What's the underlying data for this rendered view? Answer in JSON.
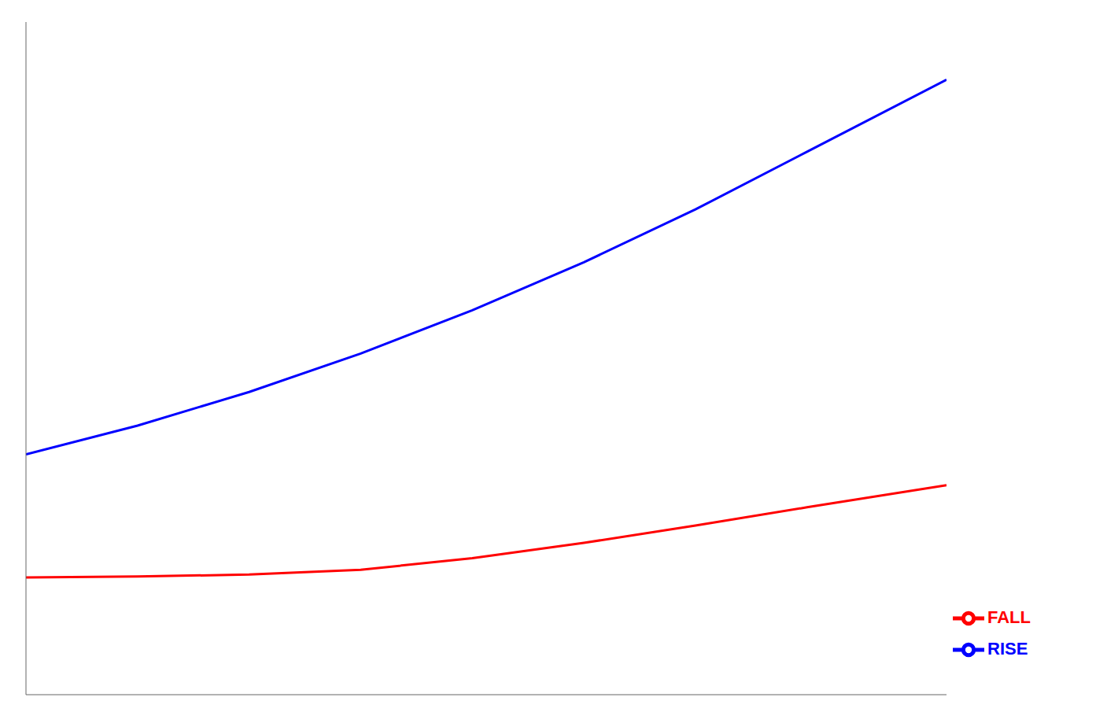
{
  "chart_data": {
    "type": "line",
    "x": [
      -40,
      -20,
      0,
      20,
      40,
      60,
      80,
      100,
      125
    ],
    "series": [
      {
        "name": "RISE",
        "color": "#0000ff",
        "values": [
          5.5,
          5.8,
          6.15,
          6.55,
          7.0,
          7.5,
          8.05,
          8.65,
          9.4
        ]
      },
      {
        "name": "FALL",
        "color": "#ff0000",
        "values": [
          4.22,
          4.23,
          4.25,
          4.3,
          4.42,
          4.58,
          4.76,
          4.95,
          5.18
        ]
      }
    ],
    "xlim": [
      -40,
      125
    ],
    "ylim": [
      3.0,
      10.0
    ],
    "tick_labels": false,
    "grid": false,
    "legend": "lower right"
  }
}
